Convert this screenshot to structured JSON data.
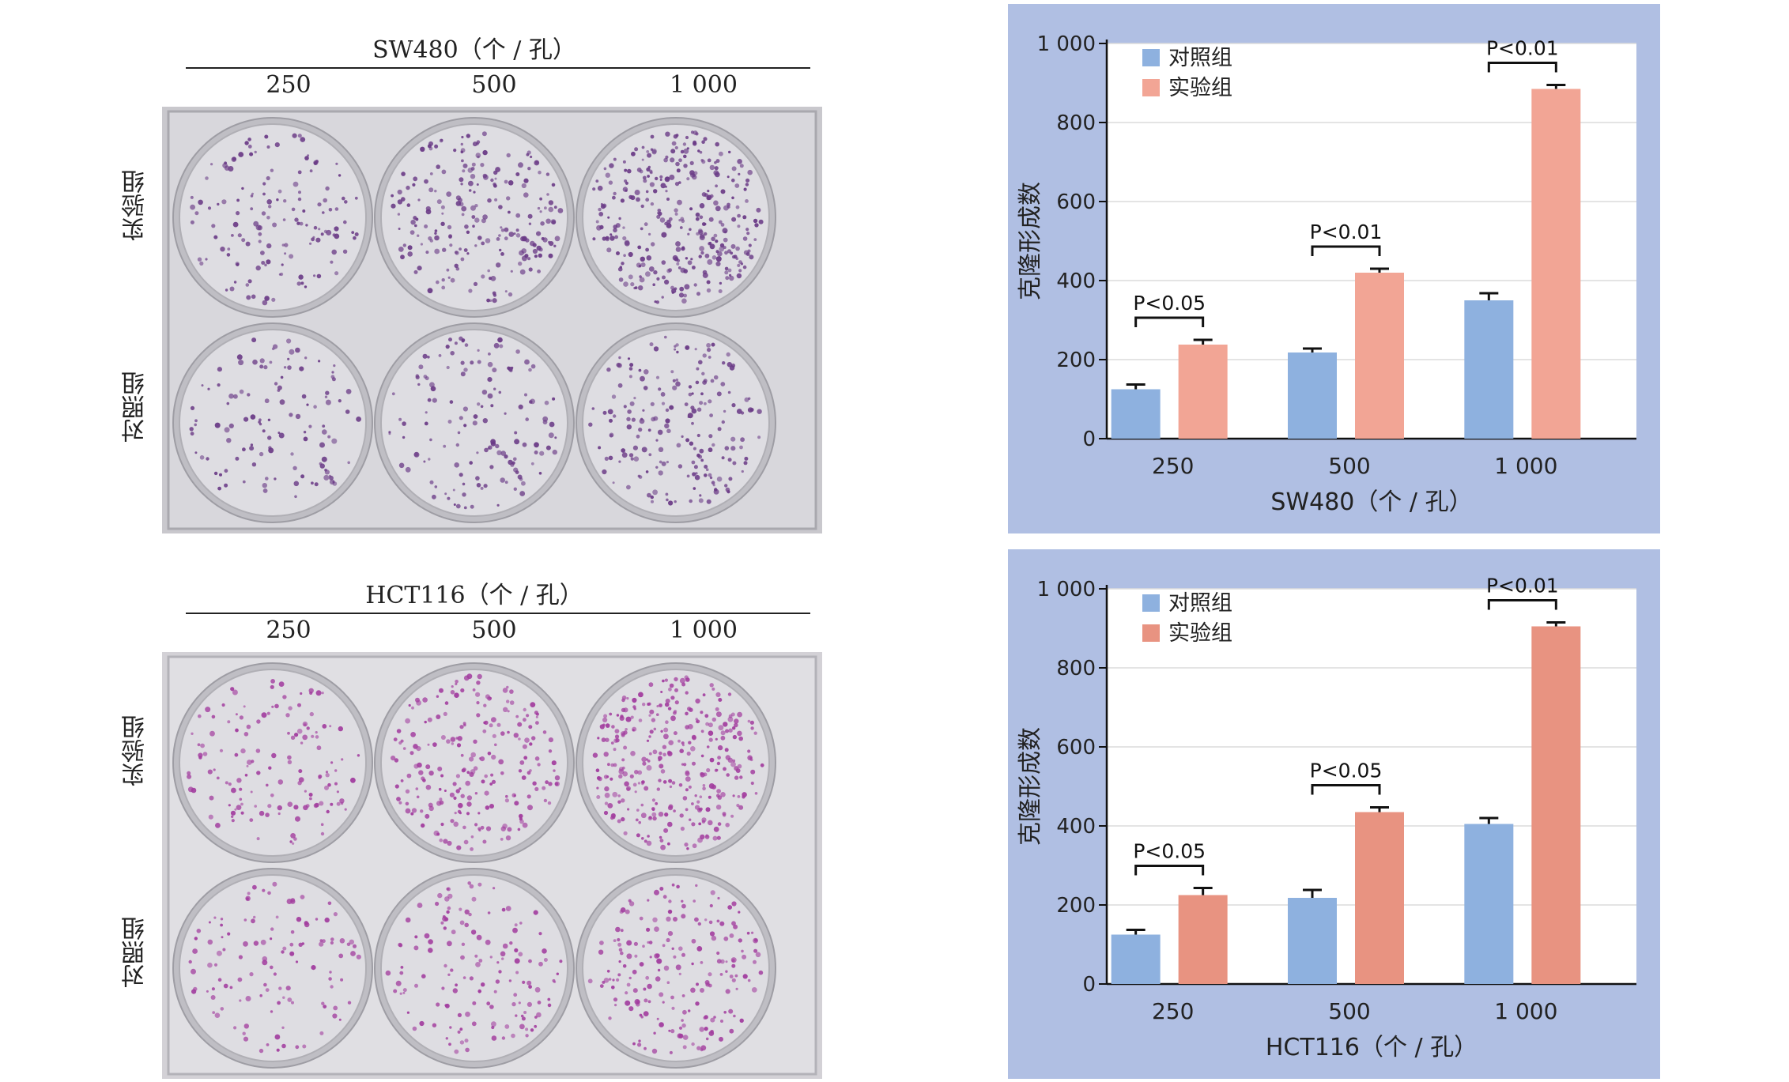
{
  "photos": [
    {
      "title": "SW480（个 / 孔）",
      "columns": [
        "250",
        "500",
        "1 000"
      ],
      "rows": [
        "实验组",
        "对照组"
      ],
      "stain_color": "#6a3a86"
    },
    {
      "title": "HCT116（个 / 孔）",
      "columns": [
        "250",
        "500",
        "1 000"
      ],
      "rows": [
        "实验组",
        "对照组"
      ],
      "stain_color": "#a23c9e"
    }
  ],
  "colors": {
    "panel_bg": "#b0bfe3",
    "control": "#8eb1df",
    "experiment_sw480": "#f2a595",
    "experiment_hct116": "#e89381"
  },
  "chart_data": [
    {
      "type": "bar",
      "categories": [
        "250",
        "500",
        "1 000"
      ],
      "xlabel": "SW480（个 / 孔）",
      "ylabel": "克隆形成数",
      "ylim": [
        0,
        1000
      ],
      "yticks": [
        "0",
        "200",
        "400",
        "600",
        "800",
        "1 000"
      ],
      "grid": true,
      "legend": "top-left",
      "series": [
        {
          "name": "对照组",
          "values": [
            125,
            218,
            350
          ],
          "errors": [
            12,
            10,
            18
          ]
        },
        {
          "name": "实验组",
          "values": [
            238,
            420,
            885
          ],
          "errors": [
            12,
            10,
            10
          ]
        }
      ],
      "annotations": [
        "P<0.05",
        "P<0.01",
        "P<0.01"
      ]
    },
    {
      "type": "bar",
      "categories": [
        "250",
        "500",
        "1 000"
      ],
      "xlabel": "HCT116（个 / 孔）",
      "ylabel": "克隆形成数",
      "ylim": [
        0,
        1000
      ],
      "yticks": [
        "0",
        "200",
        "400",
        "600",
        "800",
        "1 000"
      ],
      "grid": true,
      "legend": "top-left",
      "series": [
        {
          "name": "对照组",
          "values": [
            125,
            218,
            405
          ],
          "errors": [
            12,
            20,
            15
          ]
        },
        {
          "name": "实验组",
          "values": [
            225,
            435,
            905
          ],
          "errors": [
            18,
            12,
            10
          ]
        }
      ],
      "annotations": [
        "P<0.05",
        "P<0.05",
        "P<0.01"
      ]
    }
  ]
}
